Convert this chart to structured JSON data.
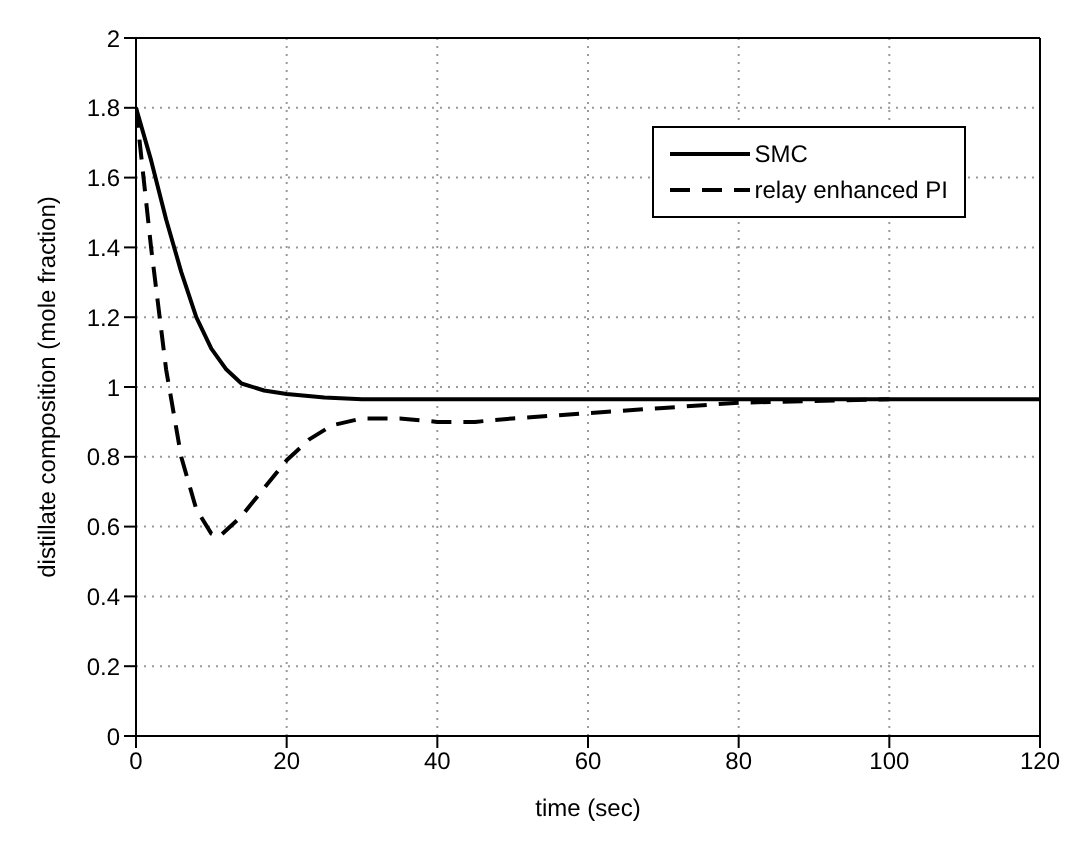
{
  "chart_data": {
    "type": "line",
    "xlabel": "time  (sec)",
    "ylabel": "distillate composition (mole fraction)",
    "xlim": [
      0,
      120
    ],
    "xticks": [
      0,
      20,
      40,
      60,
      80,
      100,
      120
    ],
    "ylim": [
      0,
      2
    ],
    "yticks": [
      0,
      0.2,
      0.4,
      0.6,
      0.8,
      1,
      1.2,
      1.4,
      1.6,
      1.8,
      2
    ],
    "grid": true,
    "legend": "top right",
    "marker": "none",
    "series": [
      {
        "name": "SMC",
        "color": "#000000",
        "line_style": "solid",
        "x": [
          0,
          2,
          4,
          6,
          8,
          10,
          12,
          14,
          17,
          20,
          25,
          30,
          40,
          60,
          80,
          100,
          120
        ],
        "values": [
          1.8,
          1.65,
          1.48,
          1.33,
          1.2,
          1.11,
          1.05,
          1.01,
          0.99,
          0.98,
          0.97,
          0.965,
          0.965,
          0.965,
          0.965,
          0.965,
          0.965
        ]
      },
      {
        "name": "relay enhanced PI",
        "color": "#000000",
        "line_style": "dashed",
        "x": [
          0,
          1,
          2,
          4,
          6,
          8,
          10,
          11,
          14,
          17,
          20,
          23,
          26,
          30,
          35,
          40,
          45,
          50,
          60,
          70,
          80,
          90,
          100
        ],
        "values": [
          1.8,
          1.6,
          1.4,
          1.05,
          0.8,
          0.65,
          0.58,
          0.57,
          0.63,
          0.71,
          0.79,
          0.85,
          0.89,
          0.91,
          0.91,
          0.9,
          0.9,
          0.91,
          0.925,
          0.94,
          0.955,
          0.96,
          0.965
        ]
      }
    ]
  }
}
